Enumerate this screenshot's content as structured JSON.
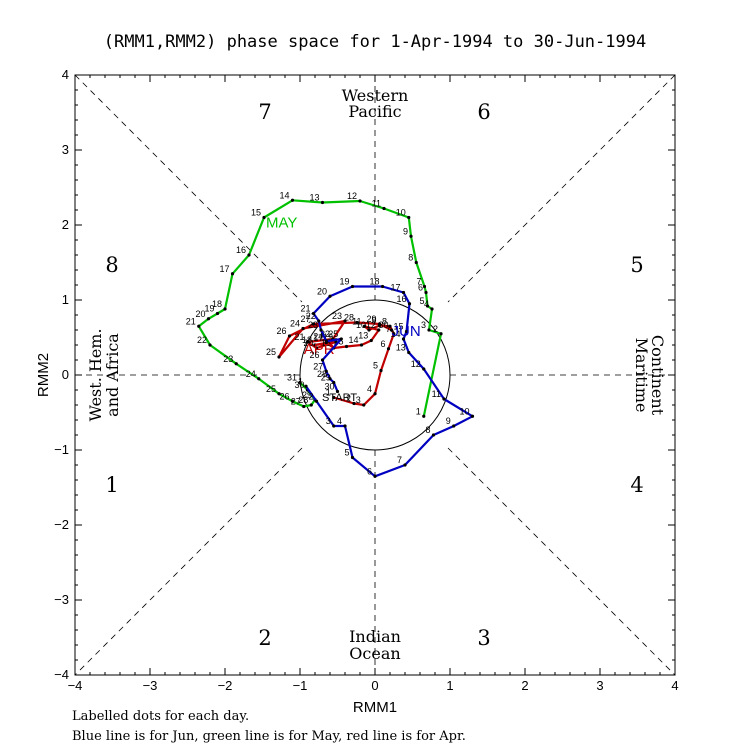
{
  "title": "(RMM1,RMM2) phase space for  1-Apr-1994 to 30-Jun-1994",
  "footer": {
    "line1": "Labelled dots for each day.",
    "line2": "Blue line is for Jun, green line is for May, red line is for Apr."
  },
  "phases": [
    "1",
    "2",
    "3",
    "4",
    "5",
    "6",
    "7",
    "8"
  ],
  "regions": {
    "top": [
      "Western",
      "Pacific"
    ],
    "bottom": [
      "Indian",
      "Ocean"
    ],
    "left": [
      "West. Hem.",
      "and Africa"
    ],
    "right": [
      "Maritime",
      "Continent"
    ]
  },
  "start_label": "START",
  "chart_data": {
    "type": "line",
    "xlabel": "RMM1",
    "ylabel": "RMM2",
    "xlim": [
      -4,
      4
    ],
    "ylim": [
      -4,
      4
    ],
    "xticks": [
      "−4",
      "−3",
      "−2",
      "−1",
      "0",
      "1",
      "2",
      "3",
      "4"
    ],
    "yticks": [
      "−4",
      "−3",
      "−2",
      "−1",
      "0",
      "1",
      "2",
      "3",
      "4"
    ],
    "unit_circle_radius": 1,
    "series": [
      {
        "name": "APR",
        "color": "#c00000",
        "points": [
          {
            "day": 1,
            "x": -0.55,
            "y": -0.3
          },
          {
            "day": 2,
            "x": -0.28,
            "y": -0.38
          },
          {
            "day": 3,
            "x": -0.15,
            "y": -0.4
          },
          {
            "day": 4,
            "x": 0.0,
            "y": -0.25
          },
          {
            "day": 5,
            "x": 0.08,
            "y": 0.06
          },
          {
            "day": 6,
            "x": 0.18,
            "y": 0.35
          },
          {
            "day": 7,
            "x": 0.25,
            "y": 0.55
          },
          {
            "day": 8,
            "x": 0.2,
            "y": 0.65
          },
          {
            "day": 9,
            "x": 0.06,
            "y": 0.66
          },
          {
            "day": 10,
            "x": -0.08,
            "y": 0.6
          },
          {
            "day": 11,
            "x": -0.14,
            "y": 0.65
          },
          {
            "day": 12,
            "x": 0.05,
            "y": 0.6
          },
          {
            "day": 13,
            "x": -0.05,
            "y": 0.46
          },
          {
            "day": 14,
            "x": -0.18,
            "y": 0.4
          },
          {
            "day": 15,
            "x": -0.38,
            "y": 0.38
          },
          {
            "day": 16,
            "x": -0.55,
            "y": 0.36
          },
          {
            "day": 17,
            "x": -0.65,
            "y": 0.43
          },
          {
            "day": 18,
            "x": -0.8,
            "y": 0.4
          },
          {
            "day": 19,
            "x": -0.52,
            "y": 0.44
          },
          {
            "day": 20,
            "x": -0.78,
            "y": 0.36
          },
          {
            "day": 21,
            "x": -0.9,
            "y": 0.44
          },
          {
            "day": 22,
            "x": -0.56,
            "y": 0.48
          },
          {
            "day": 23,
            "x": -0.4,
            "y": 0.72
          },
          {
            "day": 24,
            "x": -0.96,
            "y": 0.62
          },
          {
            "day": 25,
            "x": -1.28,
            "y": 0.24
          },
          {
            "day": 26,
            "x": -1.14,
            "y": 0.52
          },
          {
            "day": 27,
            "x": -0.82,
            "y": 0.68
          },
          {
            "day": 28,
            "x": -0.24,
            "y": 0.7
          },
          {
            "day": 29,
            "x": 0.06,
            "y": 0.68
          },
          {
            "day": 30,
            "x": 0.22,
            "y": 0.6
          }
        ]
      },
      {
        "name": "MAY",
        "color": "#00c000",
        "points": [
          {
            "day": 1,
            "x": 0.65,
            "y": -0.55
          },
          {
            "day": 2,
            "x": 0.88,
            "y": 0.55
          },
          {
            "day": 3,
            "x": 0.72,
            "y": 0.6
          },
          {
            "day": 4,
            "x": 0.76,
            "y": 0.88
          },
          {
            "day": 5,
            "x": 0.7,
            "y": 0.92
          },
          {
            "day": 6,
            "x": 0.68,
            "y": 1.1
          },
          {
            "day": 7,
            "x": 0.66,
            "y": 1.18
          },
          {
            "day": 8,
            "x": 0.55,
            "y": 1.5
          },
          {
            "day": 9,
            "x": 0.48,
            "y": 1.85
          },
          {
            "day": 10,
            "x": 0.45,
            "y": 2.1
          },
          {
            "day": 11,
            "x": 0.12,
            "y": 2.22
          },
          {
            "day": 12,
            "x": -0.2,
            "y": 2.32
          },
          {
            "day": 13,
            "x": -0.7,
            "y": 2.3
          },
          {
            "day": 14,
            "x": -1.1,
            "y": 2.33
          },
          {
            "day": 15,
            "x": -1.48,
            "y": 2.1
          },
          {
            "day": 16,
            "x": -1.68,
            "y": 1.6
          },
          {
            "day": 17,
            "x": -1.9,
            "y": 1.35
          },
          {
            "day": 18,
            "x": -2.0,
            "y": 0.88
          },
          {
            "day": 19,
            "x": -2.1,
            "y": 0.82
          },
          {
            "day": 20,
            "x": -2.22,
            "y": 0.75
          },
          {
            "day": 21,
            "x": -2.35,
            "y": 0.65
          },
          {
            "day": 22,
            "x": -2.2,
            "y": 0.4
          },
          {
            "day": 23,
            "x": -1.85,
            "y": 0.15
          },
          {
            "day": 24,
            "x": -1.55,
            "y": -0.05
          },
          {
            "day": 25,
            "x": -1.28,
            "y": -0.25
          },
          {
            "day": 26,
            "x": -1.1,
            "y": -0.35
          },
          {
            "day": 27,
            "x": -0.95,
            "y": -0.42
          },
          {
            "day": 28,
            "x": -0.85,
            "y": -0.4
          },
          {
            "day": 29,
            "x": -0.8,
            "y": -0.33
          },
          {
            "day": 30,
            "x": -0.9,
            "y": -0.2
          },
          {
            "day": 31,
            "x": -1.0,
            "y": -0.1
          }
        ]
      },
      {
        "name": "JUN",
        "color": "#0000c0",
        "points": [
          {
            "day": 1,
            "x": -0.92,
            "y": -0.15
          },
          {
            "day": 2,
            "x": -0.78,
            "y": -0.35
          },
          {
            "day": 3,
            "x": -0.55,
            "y": -0.68
          },
          {
            "day": 4,
            "x": -0.4,
            "y": -0.68
          },
          {
            "day": 5,
            "x": -0.3,
            "y": -1.1
          },
          {
            "day": 6,
            "x": 0.0,
            "y": -1.35
          },
          {
            "day": 7,
            "x": 0.4,
            "y": -1.2
          },
          {
            "day": 8,
            "x": 0.78,
            "y": -0.8
          },
          {
            "day": 9,
            "x": 1.05,
            "y": -0.68
          },
          {
            "day": 10,
            "x": 1.3,
            "y": -0.55
          },
          {
            "day": 11,
            "x": 0.92,
            "y": -0.32
          },
          {
            "day": 12,
            "x": 0.65,
            "y": 0.08
          },
          {
            "day": 13,
            "x": 0.45,
            "y": 0.3
          },
          {
            "day": 14,
            "x": 0.38,
            "y": 0.48
          },
          {
            "day": 15,
            "x": 0.42,
            "y": 0.58
          },
          {
            "day": 16,
            "x": 0.46,
            "y": 0.95
          },
          {
            "day": 17,
            "x": 0.38,
            "y": 1.1
          },
          {
            "day": 18,
            "x": 0.1,
            "y": 1.18
          },
          {
            "day": 19,
            "x": -0.3,
            "y": 1.18
          },
          {
            "day": 20,
            "x": -0.6,
            "y": 1.05
          },
          {
            "day": 21,
            "x": -0.82,
            "y": 0.82
          },
          {
            "day": 22,
            "x": -0.75,
            "y": 0.72
          },
          {
            "day": 23,
            "x": -0.72,
            "y": 0.6
          },
          {
            "day": 24,
            "x": -0.65,
            "y": 0.45
          },
          {
            "day": 25,
            "x": -0.45,
            "y": 0.48
          },
          {
            "day": 26,
            "x": -0.7,
            "y": 0.2
          },
          {
            "day": 27,
            "x": -0.65,
            "y": 0.05
          },
          {
            "day": 28,
            "x": -0.6,
            "y": -0.05
          },
          {
            "day": 29,
            "x": -0.55,
            "y": -0.1
          },
          {
            "day": 30,
            "x": -0.5,
            "y": -0.22
          }
        ]
      }
    ]
  }
}
